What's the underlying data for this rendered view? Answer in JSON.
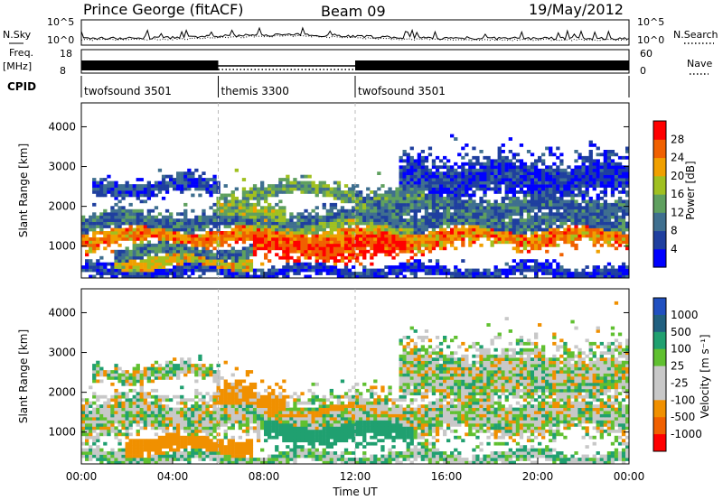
{
  "header": {
    "station": "Prince George (fitACF)",
    "beam": "Beam 09",
    "date": "19/May/2012"
  },
  "top_panel": {
    "left_label": "N.Sky",
    "left_ticks": [
      "10^5",
      "10^0"
    ],
    "right_label": "N.Search",
    "right_ticks": [
      "10^5",
      "10^0"
    ]
  },
  "freq_panel": {
    "left_label_line1": "Freq.",
    "left_label_line2": "[MHz]",
    "left_ticks": [
      "18",
      "8"
    ],
    "right_label": "Nave",
    "right_ticks": [
      "60",
      "0"
    ]
  },
  "cpid": {
    "label": "CPID",
    "segments": [
      {
        "name": "twofsound 3501",
        "start_hour": 0,
        "end_hour": 6
      },
      {
        "name": "themis 3300",
        "start_hour": 6,
        "end_hour": 12
      },
      {
        "name": "twofsound 3501",
        "start_hour": 12,
        "end_hour": 24
      }
    ]
  },
  "colors": {
    "power_scale": [
      "#0000ff",
      "#1f3f9f",
      "#3f6f8f",
      "#5fa05f",
      "#a0c020",
      "#f0a000",
      "#f06000",
      "#ff0000"
    ],
    "velocity_scale": [
      "#2050c0",
      "#206080",
      "#20a070",
      "#60c030",
      "#c8c8c8",
      "#c8c8c8",
      "#f09000",
      "#f06000",
      "#ff0000"
    ]
  },
  "chart_data": [
    {
      "type": "heatmap",
      "title": "",
      "xlabel": "",
      "ylabel": "Slant Range [km]",
      "x_ticks": [
        "00:00",
        "04:00",
        "08:00",
        "12:00",
        "16:00",
        "20:00",
        "00:00"
      ],
      "xlim": [
        0,
        24
      ],
      "ylim": [
        200,
        4600
      ],
      "y_ticks": [
        1000,
        2000,
        3000,
        4000
      ],
      "colorbar_label": "Power [dB]",
      "colorbar_ticks": [
        "4",
        "8",
        "12",
        "16",
        "20",
        "24",
        "28"
      ],
      "colorbar_range": [
        0,
        32
      ],
      "bands": [
        {
          "x0": 0,
          "x1": 24,
          "center": 1250,
          "width": 240,
          "level": 24
        },
        {
          "x0": 0,
          "x1": 24,
          "center": 1600,
          "width": 260,
          "level": 9
        },
        {
          "x0": 0.5,
          "x1": 6,
          "center": 2500,
          "width": 200,
          "level": 6
        },
        {
          "x0": 1.5,
          "x1": 7.5,
          "center": 600,
          "width": 220,
          "level": 20
        },
        {
          "x0": 1.5,
          "x1": 7.5,
          "center": 850,
          "width": 200,
          "level": 10
        },
        {
          "x0": 6,
          "x1": 9,
          "center": 1800,
          "width": 400,
          "level": 16
        },
        {
          "x0": 7,
          "x1": 12,
          "center": 2400,
          "width": 180,
          "level": 14
        },
        {
          "x0": 7.5,
          "x1": 14.5,
          "center": 1050,
          "width": 380,
          "level": 28
        },
        {
          "x0": 7.5,
          "x1": 14.5,
          "center": 1550,
          "width": 260,
          "level": 16
        },
        {
          "x0": 12,
          "x1": 15,
          "center": 2200,
          "width": 300,
          "level": 12
        },
        {
          "x0": 13,
          "x1": 24,
          "center": 2000,
          "width": 280,
          "level": 9
        },
        {
          "x0": 14,
          "x1": 24,
          "center": 2700,
          "width": 500,
          "level": 5
        },
        {
          "x0": 0,
          "x1": 24,
          "center": 350,
          "width": 160,
          "level": 5
        }
      ]
    },
    {
      "type": "heatmap",
      "title": "",
      "xlabel": "Time UT",
      "ylabel": "Slant Range [km]",
      "x_ticks": [
        "00:00",
        "04:00",
        "08:00",
        "12:00",
        "16:00",
        "20:00",
        "00:00"
      ],
      "xlim": [
        0,
        24
      ],
      "ylim": [
        200,
        4600
      ],
      "y_ticks": [
        1000,
        2000,
        3000,
        4000
      ],
      "colorbar_label": "Velocity [m s⁻¹]",
      "colorbar_ticks": [
        "1000",
        "500",
        "100",
        "25",
        "-25",
        "-100",
        "-500",
        "-1000"
      ],
      "colorbar_range": [
        -1200,
        1200
      ],
      "bands": [
        {
          "x0": 0,
          "x1": 24,
          "center": 1400,
          "width": 500,
          "level": 0
        },
        {
          "x0": 0.5,
          "x1": 6,
          "center": 2500,
          "width": 200,
          "level": 0
        },
        {
          "x0": 2,
          "x1": 7.5,
          "center": 650,
          "width": 250,
          "level": -300
        },
        {
          "x0": 6,
          "x1": 9,
          "center": 1800,
          "width": 400,
          "level": -200
        },
        {
          "x0": 8,
          "x1": 14.5,
          "center": 1050,
          "width": 350,
          "level": 300
        },
        {
          "x0": 8,
          "x1": 14.5,
          "center": 1500,
          "width": 220,
          "level": -200
        },
        {
          "x0": 14,
          "x1": 24,
          "center": 2400,
          "width": 700,
          "level": 0
        },
        {
          "x0": 0,
          "x1": 24,
          "center": 350,
          "width": 160,
          "level": 50
        }
      ]
    }
  ]
}
